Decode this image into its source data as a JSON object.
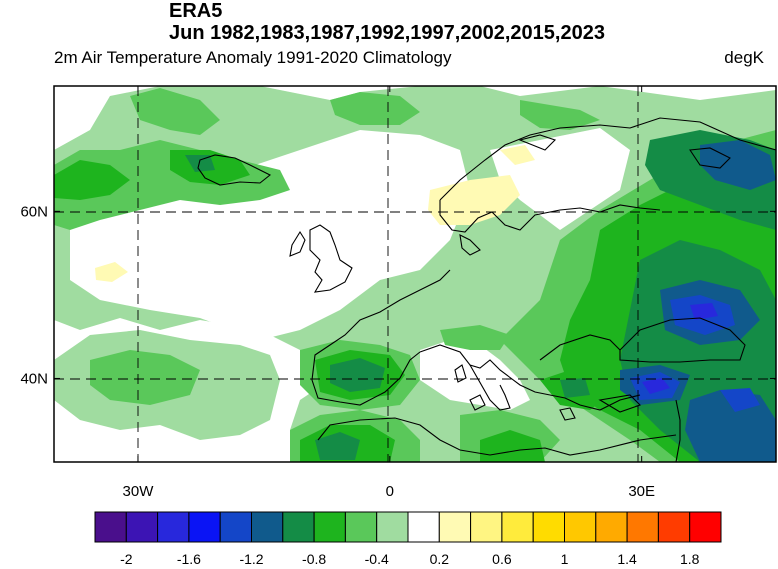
{
  "header": {
    "dataset": "ERA5",
    "months_years": "Jun 1982,1983,1987,1992,1997,2002,2015,2023",
    "variable": "2m Air Temperature Anomaly  1991-2020 Climatology",
    "units": "degK"
  },
  "axes": {
    "x_ticks": [
      {
        "value": -30,
        "label": "30W"
      },
      {
        "value": 0,
        "label": "0"
      },
      {
        "value": 30,
        "label": "30E"
      }
    ],
    "y_ticks": [
      {
        "value": 60,
        "label": "60N"
      },
      {
        "value": 40,
        "label": "40N"
      }
    ],
    "lon_range": [
      -40,
      46
    ],
    "lat_range": [
      30,
      75
    ]
  },
  "colorbar": {
    "colors": [
      "#4a0f8c",
      "#3c14b4",
      "#2828dc",
      "#0a14f5",
      "#1446c8",
      "#105a8c",
      "#148c46",
      "#1eb41e",
      "#5ac85a",
      "#a0dca0",
      "#ffffff",
      "#fffab4",
      "#fff582",
      "#ffeb3c",
      "#ffdc00",
      "#ffc800",
      "#ffaa00",
      "#ff7800",
      "#ff3c00",
      "#ff0000"
    ],
    "labels": [
      "-2",
      "-1.6",
      "-1.2",
      "-0.8",
      "-0.4",
      "0.2",
      "0.6",
      "1",
      "1.4",
      "1.8"
    ]
  },
  "fill_colors": {
    "light_green": "#a0dca0",
    "mid_green": "#5ac85a",
    "green": "#1eb41e",
    "dark_green": "#148c46",
    "teal": "#105a8c",
    "blue": "#1446c8",
    "bright_blue": "#2828dc",
    "pale_yellow": "#fffab4"
  }
}
